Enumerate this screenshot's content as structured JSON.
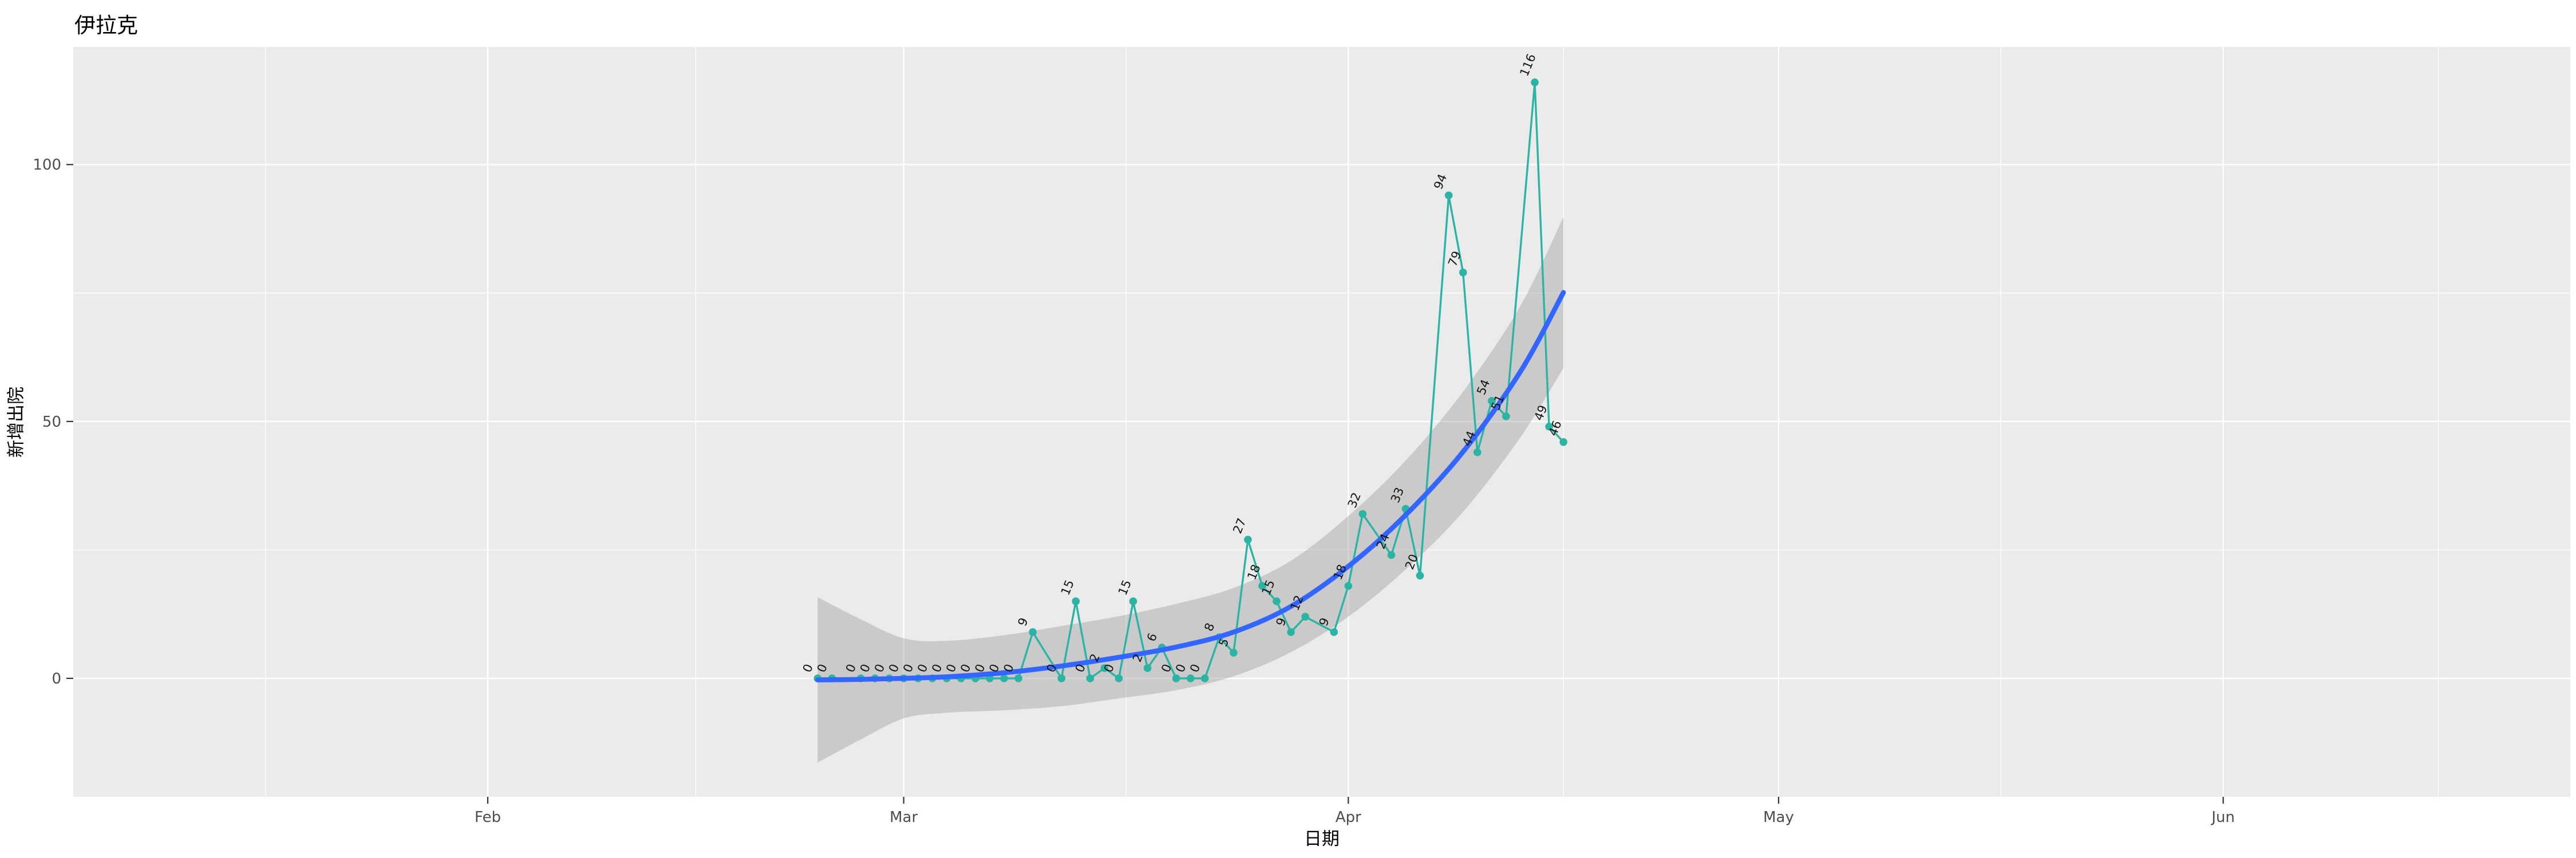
{
  "chart_data": {
    "type": "line",
    "title": "伊拉克",
    "xlabel": "日期",
    "ylabel": "新增出院",
    "legend": "none",
    "grid": "on",
    "panel_bg": "#EBEBEB",
    "grid_color": "#FFFFFF",
    "colors": {
      "series_line": "#2BB4A4",
      "series_point": "#2BB4A4",
      "point_label": "#151515",
      "smooth_line": "#3366FF",
      "ci_band": "#999999",
      "tick_text": "#4D4D4D",
      "tick_mark": "#333333"
    },
    "x_ticks": [
      {
        "label": "Feb",
        "day": -23
      },
      {
        "label": "Mar",
        "day": 6
      },
      {
        "label": "Apr",
        "day": 37
      },
      {
        "label": "May",
        "day": 67
      },
      {
        "label": "Jun",
        "day": 98
      }
    ],
    "x_minor_days": [
      -38.5,
      -8.5,
      21.5,
      52,
      82.5,
      113
    ],
    "y_ticks": [
      0,
      50,
      100
    ],
    "y_minor": [
      25,
      75
    ],
    "xlim_days": [
      -51.9,
      122.2
    ],
    "ylim": [
      -23.05,
      122.9
    ],
    "series": [
      {
        "name": "新增出院",
        "points": [
          {
            "date": "2020-02-24",
            "value": 0
          },
          {
            "date": "2020-02-25",
            "value": 0
          },
          {
            "date": "2020-02-27",
            "value": 0
          },
          {
            "date": "2020-02-28",
            "value": 0
          },
          {
            "date": "2020-02-29",
            "value": 0
          },
          {
            "date": "2020-03-01",
            "value": 0
          },
          {
            "date": "2020-03-02",
            "value": 0
          },
          {
            "date": "2020-03-03",
            "value": 0
          },
          {
            "date": "2020-03-04",
            "value": 0
          },
          {
            "date": "2020-03-05",
            "value": 0
          },
          {
            "date": "2020-03-06",
            "value": 0
          },
          {
            "date": "2020-03-07",
            "value": 0
          },
          {
            "date": "2020-03-08",
            "value": 0
          },
          {
            "date": "2020-03-09",
            "value": 0
          },
          {
            "date": "2020-03-10",
            "value": 9
          },
          {
            "date": "2020-03-12",
            "value": 0
          },
          {
            "date": "2020-03-13",
            "value": 15
          },
          {
            "date": "2020-03-14",
            "value": 0
          },
          {
            "date": "2020-03-15",
            "value": 2
          },
          {
            "date": "2020-03-16",
            "value": 0
          },
          {
            "date": "2020-03-17",
            "value": 15
          },
          {
            "date": "2020-03-18",
            "value": 2
          },
          {
            "date": "2020-03-19",
            "value": 6
          },
          {
            "date": "2020-03-20",
            "value": 0
          },
          {
            "date": "2020-03-21",
            "value": 0
          },
          {
            "date": "2020-03-22",
            "value": 0
          },
          {
            "date": "2020-03-23",
            "value": 8
          },
          {
            "date": "2020-03-24",
            "value": 5
          },
          {
            "date": "2020-03-25",
            "value": 27
          },
          {
            "date": "2020-03-26",
            "value": 18
          },
          {
            "date": "2020-03-27",
            "value": 15
          },
          {
            "date": "2020-03-28",
            "value": 9
          },
          {
            "date": "2020-03-29",
            "value": 12
          },
          {
            "date": "2020-03-31",
            "value": 9
          },
          {
            "date": "2020-04-01",
            "value": 18
          },
          {
            "date": "2020-04-02",
            "value": 32
          },
          {
            "date": "2020-04-04",
            "value": 24
          },
          {
            "date": "2020-04-05",
            "value": 33
          },
          {
            "date": "2020-04-06",
            "value": 20
          },
          {
            "date": "2020-04-08",
            "value": 94
          },
          {
            "date": "2020-04-09",
            "value": 79
          },
          {
            "date": "2020-04-10",
            "value": 44
          },
          {
            "date": "2020-04-11",
            "value": 54
          },
          {
            "date": "2020-04-12",
            "value": 51
          },
          {
            "date": "2020-04-14",
            "value": 116
          },
          {
            "date": "2020-04-15",
            "value": 49
          },
          {
            "date": "2020-04-16",
            "value": 46
          }
        ]
      }
    ],
    "smooth": {
      "method": "loess",
      "samples": [
        {
          "day": 0,
          "value": -0.3,
          "lo": -16.4,
          "hi": 15.8
        },
        {
          "day": 3,
          "value": -0.2,
          "lo": -11.9,
          "hi": 11.5
        },
        {
          "day": 6,
          "value": 0.0,
          "lo": -7.8,
          "hi": 7.8
        },
        {
          "day": 9,
          "value": 0.3,
          "lo": -6.7,
          "hi": 7.3
        },
        {
          "day": 13,
          "value": 1.1,
          "lo": -6.2,
          "hi": 8.4
        },
        {
          "day": 17,
          "value": 2.4,
          "lo": -5.4,
          "hi": 10.2
        },
        {
          "day": 21,
          "value": 4.1,
          "lo": -3.9,
          "hi": 12.1
        },
        {
          "day": 25,
          "value": 6.1,
          "lo": -2.3,
          "hi": 14.5
        },
        {
          "day": 29,
          "value": 9.0,
          "lo": 0.4,
          "hi": 17.6
        },
        {
          "day": 33,
          "value": 14.0,
          "lo": 5.1,
          "hi": 22.9
        },
        {
          "day": 37,
          "value": 21.8,
          "lo": 12.0,
          "hi": 31.6
        },
        {
          "day": 41,
          "value": 31.8,
          "lo": 21.2,
          "hi": 42.4
        },
        {
          "day": 45,
          "value": 44.1,
          "lo": 32.4,
          "hi": 55.8
        },
        {
          "day": 49,
          "value": 59.7,
          "lo": 46.9,
          "hi": 72.5
        },
        {
          "day": 52,
          "value": 75.1,
          "lo": 60.4,
          "hi": 89.8
        }
      ]
    }
  }
}
